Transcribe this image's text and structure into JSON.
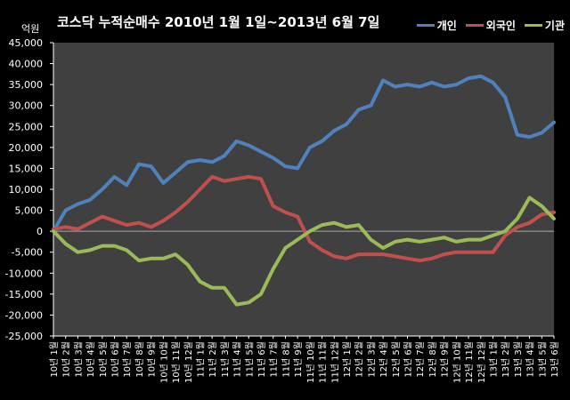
{
  "chart_data": {
    "type": "line",
    "title": "코스닥  누적순매수 2010년 1월 1일~2013년 6월 7일",
    "y_unit_label": "억원",
    "ylim": [
      -25000,
      45000
    ],
    "y_ticks": [
      -25000,
      -20000,
      -15000,
      -10000,
      -5000,
      0,
      5000,
      10000,
      15000,
      20000,
      25000,
      30000,
      35000,
      40000,
      45000
    ],
    "y_tick_labels": [
      "-25,000",
      "-20,000",
      "-15,000",
      "-10,000",
      "-5,000",
      "0",
      "5,000",
      "10,000",
      "15,000",
      "20,000",
      "25,000",
      "30,000",
      "35,000",
      "40,000",
      "45,000"
    ],
    "grid": false,
    "legend_position": "top-right",
    "categories": [
      "10년 1월",
      "10년 2월",
      "10년 3월",
      "10년 4월",
      "10년 5월",
      "10년 6월",
      "10년 7월",
      "10년 8월",
      "10년 9월",
      "10년 10월",
      "10년 11월",
      "10년 12월",
      "11년 1월",
      "11년 2월",
      "11년 3월",
      "11년 4월",
      "11년 5월",
      "11년 6월",
      "11년 7월",
      "11년 8월",
      "11년 9월",
      "11년 10월",
      "11년 11월",
      "11년 12월",
      "12년 1월",
      "12년 2월",
      "12년 3월",
      "12년 4월",
      "12년 5월",
      "12년 6월",
      "12년 7월",
      "12년 8월",
      "12년 9월",
      "12년 10월",
      "12년 11월",
      "12년 12월",
      "13년 1월",
      "13년 2월",
      "13년 3월",
      "13년 4월",
      "13년 5월",
      "13년 6월"
    ],
    "series": [
      {
        "name": "개인",
        "color": "#4f81bd",
        "values": [
          [
            0,
            0
          ],
          [
            1,
            5000
          ],
          [
            2,
            6500
          ],
          [
            3,
            7500
          ],
          [
            4,
            10000
          ],
          [
            5,
            13000
          ],
          [
            6,
            11000
          ],
          [
            7,
            16000
          ],
          [
            8,
            15500
          ],
          [
            9,
            11500
          ],
          [
            10,
            14000
          ],
          [
            11,
            16500
          ],
          [
            12,
            17000
          ],
          [
            13,
            16500
          ],
          [
            14,
            18000
          ],
          [
            15,
            21500
          ],
          [
            16,
            20500
          ],
          [
            17,
            19000
          ],
          [
            18,
            17500
          ],
          [
            19,
            15500
          ],
          [
            20,
            15000
          ],
          [
            21,
            20000
          ],
          [
            22,
            21500
          ],
          [
            23,
            24000
          ],
          [
            24,
            25500
          ],
          [
            25,
            29000
          ],
          [
            26,
            30000
          ],
          [
            27,
            36000
          ],
          [
            28,
            34500
          ],
          [
            29,
            35000
          ],
          [
            30,
            34500
          ],
          [
            31,
            35500
          ],
          [
            32,
            34500
          ],
          [
            33,
            35000
          ],
          [
            34,
            36500
          ],
          [
            35,
            37000
          ],
          [
            36,
            35500
          ],
          [
            37,
            32000
          ],
          [
            38,
            23000
          ],
          [
            39,
            22500
          ],
          [
            40,
            23500
          ],
          [
            41,
            26000
          ]
        ]
      },
      {
        "name": "외국인",
        "color": "#c0504d",
        "values": [
          [
            0,
            500
          ],
          [
            1,
            1000
          ],
          [
            2,
            500
          ],
          [
            3,
            2000
          ],
          [
            4,
            3500
          ],
          [
            5,
            2500
          ],
          [
            6,
            1500
          ],
          [
            7,
            2000
          ],
          [
            8,
            1000
          ],
          [
            9,
            2500
          ],
          [
            10,
            4500
          ],
          [
            11,
            7000
          ],
          [
            12,
            10000
          ],
          [
            13,
            13000
          ],
          [
            14,
            12000
          ],
          [
            15,
            12500
          ],
          [
            16,
            13000
          ],
          [
            17,
            12500
          ],
          [
            18,
            6000
          ],
          [
            19,
            4500
          ],
          [
            20,
            3500
          ],
          [
            21,
            -2500
          ],
          [
            22,
            -4500
          ],
          [
            23,
            -6000
          ],
          [
            24,
            -6500
          ],
          [
            25,
            -5500
          ],
          [
            26,
            -5500
          ],
          [
            27,
            -5500
          ],
          [
            28,
            -6000
          ],
          [
            29,
            -6500
          ],
          [
            30,
            -7000
          ],
          [
            31,
            -6500
          ],
          [
            32,
            -5500
          ],
          [
            33,
            -5000
          ],
          [
            34,
            -5000
          ],
          [
            35,
            -5000
          ],
          [
            36,
            -5000
          ],
          [
            37,
            -1000
          ],
          [
            38,
            1000
          ],
          [
            39,
            2000
          ],
          [
            40,
            4000
          ],
          [
            41,
            4500
          ]
        ]
      },
      {
        "name": "기관",
        "color": "#9bbb59",
        "values": [
          [
            0,
            0
          ],
          [
            1,
            -3000
          ],
          [
            2,
            -5000
          ],
          [
            3,
            -4500
          ],
          [
            4,
            -3500
          ],
          [
            5,
            -3500
          ],
          [
            6,
            -4500
          ],
          [
            7,
            -7000
          ],
          [
            8,
            -6500
          ],
          [
            9,
            -6500
          ],
          [
            10,
            -5500
          ],
          [
            11,
            -8000
          ],
          [
            12,
            -12000
          ],
          [
            13,
            -13500
          ],
          [
            14,
            -13500
          ],
          [
            15,
            -17500
          ],
          [
            16,
            -17000
          ],
          [
            17,
            -15000
          ],
          [
            18,
            -9000
          ],
          [
            19,
            -4000
          ],
          [
            20,
            -2000
          ],
          [
            21,
            0
          ],
          [
            22,
            1500
          ],
          [
            23,
            2000
          ],
          [
            24,
            1000
          ],
          [
            25,
            1500
          ],
          [
            26,
            -2000
          ],
          [
            27,
            -4000
          ],
          [
            28,
            -2500
          ],
          [
            29,
            -2000
          ],
          [
            30,
            -2500
          ],
          [
            31,
            -2000
          ],
          [
            32,
            -1500
          ],
          [
            33,
            -2500
          ],
          [
            34,
            -2000
          ],
          [
            35,
            -2000
          ],
          [
            36,
            -1000
          ],
          [
            37,
            0
          ],
          [
            38,
            3000
          ],
          [
            39,
            8000
          ],
          [
            40,
            6000
          ],
          [
            41,
            3000
          ]
        ]
      }
    ]
  }
}
